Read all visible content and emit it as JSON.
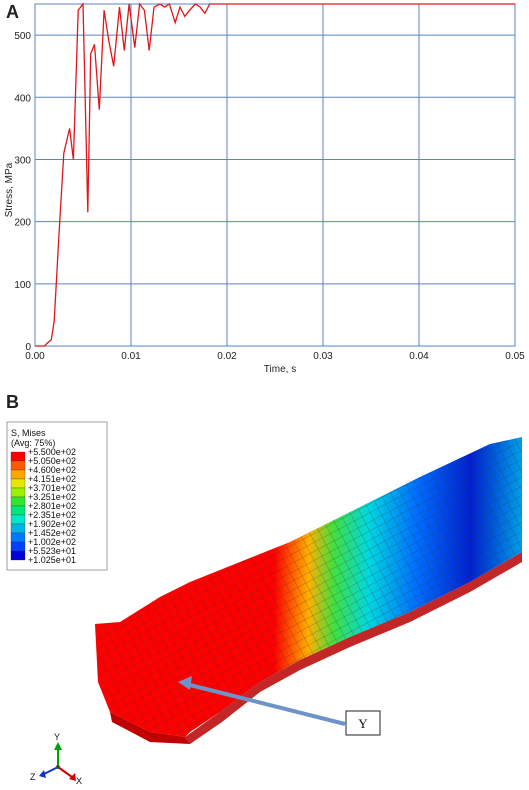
{
  "panel_a_letter": "A",
  "panel_b_letter": "B",
  "chart_data": {
    "type": "line",
    "title": "",
    "xlabel": "Time, s",
    "ylabel": "Stress, MPa",
    "xlim": [
      0,
      0.05
    ],
    "ylim": [
      0,
      550
    ],
    "xticks": [
      0.0,
      0.01,
      0.02,
      0.03,
      0.04,
      0.05
    ],
    "xtick_labels": [
      "0.00",
      "0.01",
      "0.02",
      "0.03",
      "0.04",
      "0.05"
    ],
    "yticks": [
      0,
      100,
      200,
      300,
      400,
      500
    ],
    "ytick_labels": [
      "0",
      "100",
      "200",
      "300",
      "400",
      "500"
    ],
    "grid": true,
    "color": "#e0161b",
    "series": [
      {
        "x": [
          0.0,
          0.001,
          0.0013,
          0.0017,
          0.002,
          0.0025,
          0.003,
          0.0036,
          0.004,
          0.0045,
          0.005,
          0.0055,
          0.0058,
          0.0062,
          0.0067,
          0.0072,
          0.0077,
          0.0082,
          0.0088,
          0.0093,
          0.0098,
          0.0104,
          0.0109,
          0.0114,
          0.0119,
          0.0124,
          0.013,
          0.0135,
          0.014,
          0.0146,
          0.0151,
          0.0156,
          0.0161,
          0.0167,
          0.0172,
          0.0177,
          0.0182,
          0.0187,
          0.02,
          0.05
        ],
        "y": [
          0,
          0,
          5,
          10,
          40,
          180,
          310,
          350,
          300,
          540,
          550,
          215,
          470,
          485,
          380,
          540,
          490,
          450,
          545,
          475,
          550,
          480,
          550,
          540,
          475,
          545,
          550,
          545,
          550,
          520,
          545,
          530,
          540,
          550,
          545,
          535,
          550,
          550,
          550,
          550
        ]
      }
    ]
  },
  "contour": {
    "title": "S, Mises",
    "subtitle": "(Avg: 75%)",
    "levels": [
      "+5.500e+02",
      "+5.050e+02",
      "+4.600e+02",
      "+4.151e+02",
      "+3.701e+02",
      "+3.251e+02",
      "+2.801e+02",
      "+2.351e+02",
      "+1.902e+02",
      "+1.452e+02",
      "+1.002e+02",
      "+5.523e+01",
      "+1.025e+01"
    ],
    "colors": [
      "#ff0000",
      "#ff5a00",
      "#ffa500",
      "#e6e600",
      "#9cf000",
      "#2ee82e",
      "#00e678",
      "#00e6c8",
      "#00b4e6",
      "#0078ff",
      "#0040ff",
      "#0000d8"
    ],
    "annotation": "Y"
  },
  "triad": {
    "x": "X",
    "y": "Y",
    "z": "Z"
  }
}
